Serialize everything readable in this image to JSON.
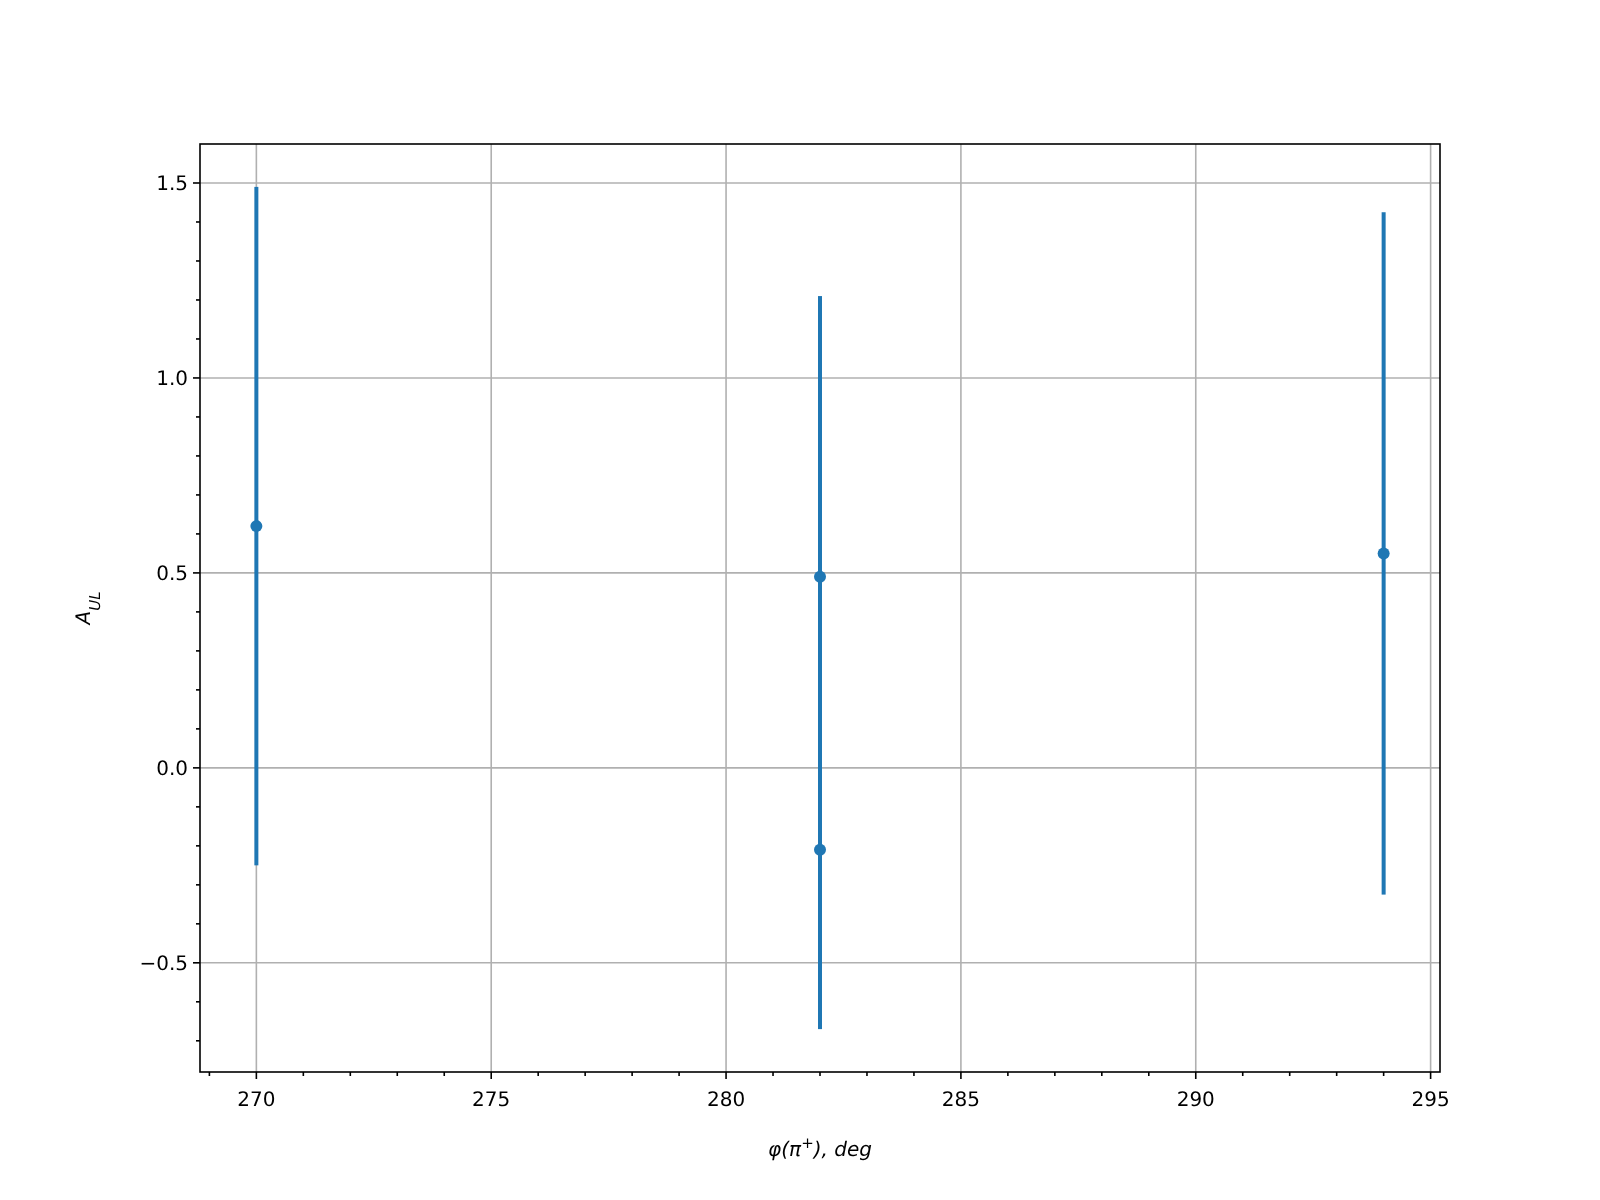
{
  "chart_data": {
    "type": "scatter",
    "xlabel": "φ(π$^{+}$), deg",
    "ylabel": "A$_{UL}$",
    "x": [
      270,
      282,
      282,
      294
    ],
    "series": [
      {
        "color": "#1f77b4",
        "values": [
          0.62,
          0.49,
          -0.21,
          0.55
        ],
        "errors": [
          0.87,
          0.72,
          0.46,
          0.875
        ]
      }
    ],
    "marker": "circle",
    "grid": true,
    "xlim": [
      268.8,
      295.2
    ],
    "ylim": [
      -0.78,
      1.6
    ],
    "xticks": [
      {
        "value": 269,
        "label": null
      },
      270,
      {
        "value": 271,
        "label": null
      },
      {
        "value": 272,
        "label": null
      },
      {
        "value": 273,
        "label": null
      },
      {
        "value": 274,
        "label": null
      },
      275,
      {
        "value": 276,
        "label": null
      },
      {
        "value": 277,
        "label": null
      },
      {
        "value": 278,
        "label": null
      },
      {
        "value": 279,
        "label": null
      },
      280,
      {
        "value": 281,
        "label": null
      },
      {
        "value": 282,
        "label": null
      },
      {
        "value": 283,
        "label": null
      },
      {
        "value": 284,
        "label": null
      },
      285,
      {
        "value": 286,
        "label": null
      },
      {
        "value": 287,
        "label": null
      },
      {
        "value": 288,
        "label": null
      },
      {
        "value": 289,
        "label": null
      },
      290,
      {
        "value": 291,
        "label": null
      },
      {
        "value": 292,
        "label": null
      },
      {
        "value": 293,
        "label": null
      },
      {
        "value": 294,
        "label": null
      },
      295
    ],
    "yticks": [
      {
        "value": -0.7,
        "label": null
      },
      {
        "value": -0.6,
        "label": null
      },
      {
        "value": -0.5,
        "label": "−0.5"
      },
      {
        "value": -0.4,
        "label": null
      },
      {
        "value": -0.3,
        "label": null
      },
      {
        "value": -0.2,
        "label": null
      },
      {
        "value": -0.1,
        "label": null
      },
      {
        "value": 0,
        "label": "0.0"
      },
      {
        "value": 0.1,
        "label": null
      },
      {
        "value": 0.2,
        "label": null
      },
      {
        "value": 0.3,
        "label": null
      },
      {
        "value": 0.4,
        "label": null
      },
      {
        "value": 0.5,
        "label": "0.5"
      },
      {
        "value": 0.6,
        "label": null
      },
      {
        "value": 0.7,
        "label": null
      },
      {
        "value": 0.8,
        "label": null
      },
      {
        "value": 0.9,
        "label": null
      },
      {
        "value": 1,
        "label": "1.0"
      },
      {
        "value": 1.1,
        "label": null
      },
      {
        "value": 1.2,
        "label": null
      },
      {
        "value": 1.3,
        "label": null
      },
      {
        "value": 1.4,
        "label": null
      },
      {
        "value": 1.5,
        "label": "1.5"
      }
    ]
  }
}
